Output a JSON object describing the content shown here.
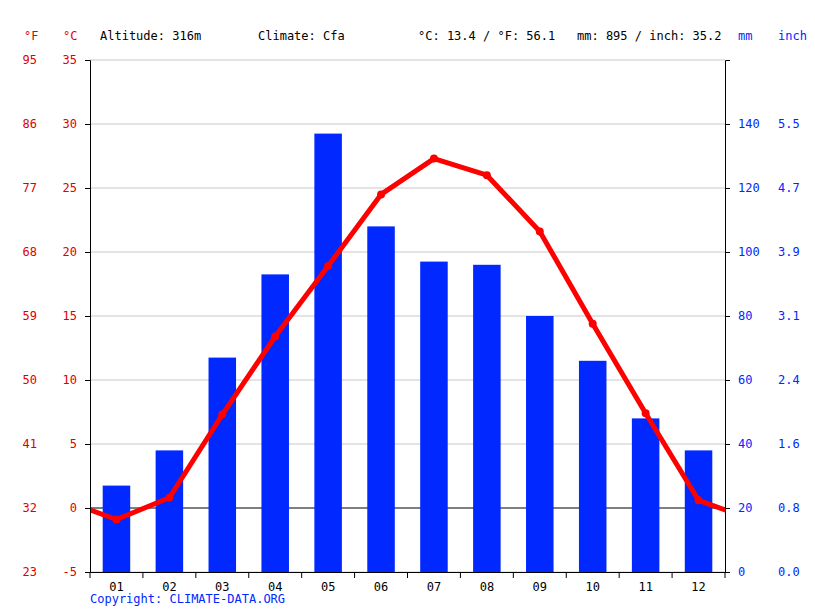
{
  "chart_data": {
    "type": "bar",
    "annotations": [
      "Altitude: 316m",
      "Climate: Cfa",
      "°C: 13.4 / °F: 56.1",
      "mm: 895 / inch: 35.2"
    ],
    "source": "Copyright: CLIMATE-DATA.ORG",
    "y_label": "°C",
    "y_fahrenheit_label": "°F",
    "y2_label": "mm",
    "y2_inch_label": "inch",
    "categories": [
      "01",
      "02",
      "03",
      "04",
      "05",
      "06",
      "07",
      "08",
      "09",
      "10",
      "11",
      "12"
    ],
    "series": [
      {
        "type": "bar",
        "color": "#0028ff",
        "axis": "y2",
        "values": [
          27,
          38,
          67,
          93,
          137,
          108,
          97,
          96,
          80,
          66,
          48,
          38
        ]
      },
      {
        "type": "line",
        "color": "#ff0000",
        "marker": "circle",
        "values": [
          -0.9,
          0.8,
          7.3,
          13.4,
          18.9,
          24.5,
          27.3,
          26.0,
          21.6,
          14.4,
          7.4,
          0.6
        ]
      }
    ],
    "ylim": [
      -5,
      35
    ],
    "yticks": [
      -5,
      0,
      5,
      10,
      15,
      20,
      25,
      30,
      35
    ],
    "y_fahrenheit_ticks": [
      {
        "value": -5,
        "label": "23"
      },
      {
        "value": 0,
        "label": "32"
      },
      {
        "value": 5,
        "label": "41"
      },
      {
        "value": 10,
        "label": "50"
      },
      {
        "value": 15,
        "label": "59"
      },
      {
        "value": 20,
        "label": "68"
      },
      {
        "value": 25,
        "label": "77"
      },
      {
        "value": 30,
        "label": "86"
      },
      {
        "value": 35,
        "label": "95"
      }
    ],
    "y2lim": [
      0,
      160
    ],
    "y2ticks": [
      0,
      20,
      40,
      60,
      80,
      100,
      120,
      140
    ],
    "y2_inch_ticks": [
      {
        "value": 0,
        "label": "0.0"
      },
      {
        "value": 20,
        "label": "0.8"
      },
      {
        "value": 40,
        "label": "1.6"
      },
      {
        "value": 60,
        "label": "2.4"
      },
      {
        "value": 80,
        "label": "3.1"
      },
      {
        "value": 100,
        "label": "3.9"
      },
      {
        "value": 120,
        "label": "4.7"
      },
      {
        "value": 140,
        "label": "5.5"
      }
    ],
    "grid": true
  }
}
